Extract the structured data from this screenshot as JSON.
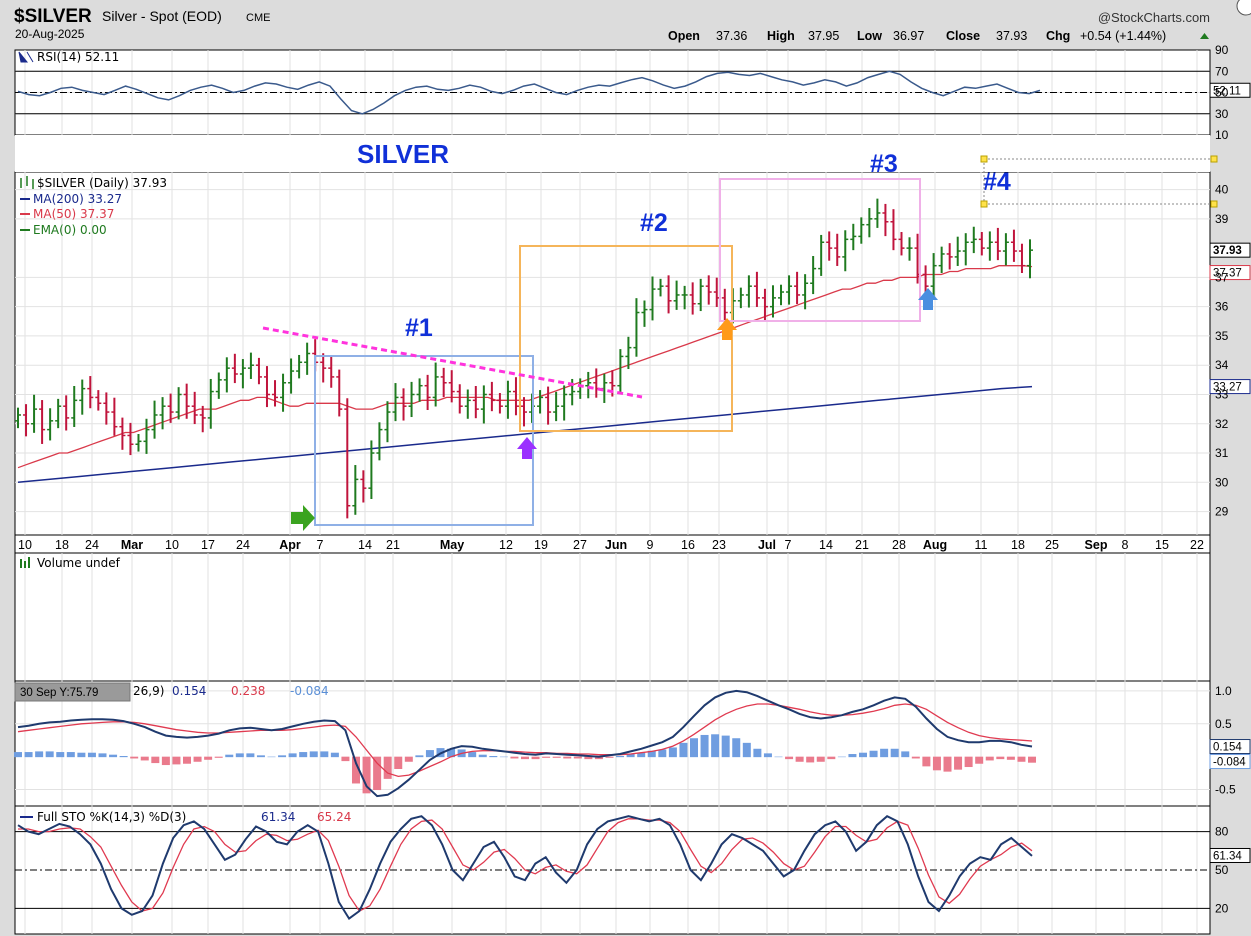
{
  "header": {
    "symbol": "$SILVER",
    "name": "Silver - Spot (EOD)",
    "exchange": "CME",
    "date": "20-Aug-2025",
    "brand": "@StockCharts.com",
    "open_label": "Open",
    "open": "37.36",
    "high_label": "High",
    "high": "37.95",
    "low_label": "Low",
    "low": "36.97",
    "close_label": "Close",
    "close": "37.93",
    "chg_label": "Chg",
    "chg": "+0.54 (+1.44%)"
  },
  "colors": {
    "up": "#1f7a1f",
    "down": "#c0143c",
    "ma200": "#1a2a8c",
    "ma50": "#d9394a",
    "grid": "#e2e2e2"
  },
  "chart_data": [
    {
      "panel": "rsi",
      "type": "line",
      "legend": "RSI(14) 52.11",
      "label_tag": "52.11",
      "ticks": [
        "90",
        "70",
        "50",
        "30",
        "10"
      ],
      "levels": [
        70,
        50,
        30
      ],
      "ylim": [
        10,
        90
      ],
      "values": [
        51,
        48,
        47,
        50,
        54,
        55,
        52,
        50,
        48,
        52,
        56,
        53,
        49,
        45,
        43,
        47,
        52,
        55,
        57,
        54,
        50,
        52,
        56,
        59,
        58,
        55,
        53,
        57,
        60,
        56,
        44,
        33,
        30,
        34,
        40,
        47,
        52,
        55,
        56,
        53,
        52,
        54,
        57,
        55,
        51,
        49,
        52,
        56,
        58,
        54,
        50,
        48,
        52,
        55,
        57,
        56,
        59,
        62,
        64,
        61,
        57,
        54,
        56,
        60,
        65,
        68,
        69,
        67,
        66,
        68,
        65,
        62,
        60,
        57,
        59,
        62,
        60,
        56,
        59,
        64,
        67,
        70,
        67,
        60,
        54,
        50,
        47,
        51,
        55,
        54,
        56,
        58,
        54,
        50,
        49,
        52
      ]
    },
    {
      "panel": "price",
      "type": "ohlc",
      "legend": [
        "$SILVER (Daily) 37.93",
        "MA(200) 33.27",
        "MA(50) 37.37",
        "EMA(0) 0.00"
      ],
      "title": "SILVER",
      "annotations": [
        "#1",
        "#2",
        "#3",
        "#4"
      ],
      "ticks": [
        "29",
        "30",
        "31",
        "32",
        "33",
        "34",
        "35",
        "36",
        "37",
        "39",
        "40"
      ],
      "ylim": [
        28.2,
        40.6
      ],
      "close_tag": "37.93",
      "ma50_tag": "37.37",
      "ma200_tag": "33.27",
      "x_labels": [
        "10",
        "18",
        "24",
        "Mar",
        "10",
        "17",
        "24",
        "Apr",
        "7",
        "14",
        "21",
        "May",
        "12",
        "19",
        "27",
        "Jun",
        "9",
        "16",
        "23",
        "Jul",
        "7",
        "14",
        "21",
        "28",
        "Aug",
        "11",
        "18",
        "25",
        "Sep",
        "8",
        "15",
        "22"
      ],
      "closes": [
        32.3,
        32.0,
        32.5,
        31.8,
        32.1,
        32.6,
        32.2,
        32.8,
        33.2,
        32.9,
        32.7,
        32.4,
        31.9,
        31.6,
        31.3,
        31.4,
        31.8,
        32.3,
        32.6,
        32.4,
        33.0,
        32.6,
        32.3,
        32.2,
        33.1,
        33.5,
        33.9,
        33.7,
        33.9,
        34.0,
        33.6,
        33.0,
        32.9,
        33.4,
        33.8,
        34.1,
        34.4,
        34.1,
        33.9,
        33.6,
        32.5,
        29.2,
        30.1,
        29.8,
        31.0,
        31.8,
        32.4,
        32.9,
        32.6,
        33.0,
        33.3,
        32.9,
        33.6,
        33.4,
        33.1,
        32.6,
        32.8,
        32.5,
        33.0,
        32.8,
        32.6,
        33.1,
        32.6,
        32.4,
        32.6,
        32.9,
        32.4,
        32.6,
        33.0,
        33.1,
        33.3,
        33.4,
        33.2,
        33.4,
        33.3,
        34.3,
        34.6,
        35.8,
        35.9,
        36.6,
        36.7,
        36.2,
        36.4,
        36.4,
        36.1,
        36.7,
        36.5,
        36.3,
        35.8,
        36.2,
        36.4,
        36.7,
        36.3,
        36.0,
        36.3,
        36.5,
        36.7,
        36.4,
        36.8,
        37.3,
        38.2,
        38.0,
        37.7,
        38.3,
        38.4,
        38.8,
        39.0,
        39.2,
        38.9,
        38.3,
        38.0,
        38.0,
        37.1,
        36.7,
        37.4,
        37.8,
        37.7,
        37.9,
        38.2,
        38.3,
        38.0,
        38.2,
        37.9,
        38.2,
        37.9,
        37.4,
        37.93
      ],
      "ma50": [
        30.5,
        30.6,
        30.7,
        30.8,
        30.9,
        31.0,
        31.0,
        31.1,
        31.2,
        31.3,
        31.4,
        31.5,
        31.6,
        31.7,
        31.7,
        31.8,
        31.9,
        32.0,
        32.1,
        32.2,
        32.3,
        32.4,
        32.5,
        32.5,
        32.5,
        32.6,
        32.7,
        32.8,
        32.8,
        32.9,
        32.9,
        32.8,
        32.7,
        32.6,
        32.6,
        32.7,
        32.7,
        32.7,
        32.7,
        32.7,
        32.6,
        32.5,
        32.5,
        32.5,
        32.6,
        32.7,
        32.7,
        32.7,
        32.7,
        32.8,
        32.8,
        32.8,
        32.9,
        32.9,
        32.9,
        32.9,
        32.9,
        32.9,
        32.8,
        32.8,
        32.8,
        32.8,
        32.8,
        32.9,
        33.0,
        33.1,
        33.2,
        33.3,
        33.4,
        33.5,
        33.6,
        33.7,
        33.8,
        33.9,
        34.0,
        34.1,
        34.2,
        34.3,
        34.4,
        34.5,
        34.6,
        34.7,
        34.8,
        34.9,
        35.0,
        35.1,
        35.2,
        35.3,
        35.4,
        35.5,
        35.6,
        35.7,
        35.8,
        35.9,
        36.0,
        36.1,
        36.2,
        36.3,
        36.4,
        36.5,
        36.6,
        36.6,
        36.7,
        36.8,
        36.8,
        36.9,
        36.9,
        37.0,
        37.0,
        37.0,
        37.1,
        37.1,
        37.1,
        37.2,
        37.2,
        37.3,
        37.3,
        37.3,
        37.3,
        37.4,
        37.4,
        37.4,
        37.4,
        37.37
      ],
      "ma200": [
        30.0,
        30.1,
        30.2,
        30.3,
        30.4,
        30.5,
        30.6,
        30.7,
        30.8,
        30.9,
        31.0,
        31.1,
        31.2,
        31.3,
        31.4,
        31.5,
        31.6,
        31.7,
        31.8,
        31.9,
        32.0,
        32.1,
        32.2,
        32.3,
        32.4,
        32.5,
        32.6,
        32.7,
        32.8,
        32.9,
        33.0,
        33.1,
        33.2,
        33.27
      ]
    },
    {
      "panel": "volume",
      "type": "bar",
      "legend": "Volume undef"
    },
    {
      "panel": "macd",
      "type": "line",
      "tooltip": "30 Sep Y:75.79",
      "legend_fragment": "26,9)",
      "values": [
        "0.154",
        "0.238",
        "-0.084"
      ],
      "ticks": [
        "1.0",
        "0.5",
        "-0.5"
      ],
      "ylim": [
        -0.75,
        1.15
      ],
      "macd_tag": "0.154",
      "hist_tag": "-0.084",
      "macd": [
        0.45,
        0.47,
        0.5,
        0.52,
        0.53,
        0.55,
        0.56,
        0.57,
        0.57,
        0.56,
        0.54,
        0.5,
        0.45,
        0.38,
        0.32,
        0.3,
        0.29,
        0.3,
        0.32,
        0.35,
        0.4,
        0.43,
        0.44,
        0.42,
        0.4,
        0.42,
        0.46,
        0.5,
        0.53,
        0.55,
        0.54,
        0.4,
        -0.1,
        -0.45,
        -0.6,
        -0.58,
        -0.48,
        -0.35,
        -0.2,
        -0.05,
        0.05,
        0.12,
        0.16,
        0.15,
        0.12,
        0.1,
        0.08,
        0.06,
        0.04,
        0.03,
        0.05,
        0.04,
        0.03,
        0.02,
        0.01,
        0.0,
        0.02,
        0.04,
        0.08,
        0.12,
        0.17,
        0.22,
        0.3,
        0.45,
        0.62,
        0.78,
        0.9,
        0.97,
        1.0,
        0.98,
        0.92,
        0.85,
        0.78,
        0.72,
        0.65,
        0.6,
        0.58,
        0.6,
        0.63,
        0.68,
        0.72,
        0.78,
        0.85,
        0.9,
        0.88,
        0.76,
        0.58,
        0.42,
        0.3,
        0.25,
        0.22,
        0.22,
        0.24,
        0.24,
        0.22,
        0.18,
        0.154
      ],
      "signal": [
        0.38,
        0.4,
        0.42,
        0.44,
        0.46,
        0.48,
        0.5,
        0.51,
        0.52,
        0.53,
        0.53,
        0.52,
        0.5,
        0.47,
        0.44,
        0.41,
        0.39,
        0.37,
        0.36,
        0.36,
        0.37,
        0.38,
        0.39,
        0.4,
        0.4,
        0.4,
        0.41,
        0.43,
        0.45,
        0.47,
        0.48,
        0.46,
        0.3,
        0.1,
        -0.1,
        -0.25,
        -0.3,
        -0.28,
        -0.22,
        -0.15,
        -0.08,
        0.0,
        0.05,
        0.08,
        0.09,
        0.09,
        0.08,
        0.08,
        0.07,
        0.06,
        0.06,
        0.05,
        0.05,
        0.04,
        0.04,
        0.03,
        0.03,
        0.03,
        0.04,
        0.06,
        0.08,
        0.11,
        0.16,
        0.24,
        0.34,
        0.45,
        0.56,
        0.65,
        0.72,
        0.77,
        0.8,
        0.8,
        0.78,
        0.75,
        0.72,
        0.68,
        0.65,
        0.63,
        0.63,
        0.64,
        0.66,
        0.69,
        0.73,
        0.78,
        0.8,
        0.78,
        0.72,
        0.62,
        0.52,
        0.44,
        0.37,
        0.32,
        0.29,
        0.27,
        0.26,
        0.25,
        0.238
      ],
      "hist": [
        0.07,
        0.07,
        0.08,
        0.08,
        0.07,
        0.07,
        0.06,
        0.06,
        0.05,
        0.03,
        0.01,
        -0.02,
        -0.05,
        -0.09,
        -0.12,
        -0.11,
        -0.1,
        -0.07,
        -0.04,
        -0.01,
        0.03,
        0.05,
        0.05,
        0.02,
        0.0,
        0.02,
        0.05,
        0.07,
        0.08,
        0.08,
        0.06,
        -0.06,
        -0.4,
        -0.55,
        -0.5,
        -0.33,
        -0.18,
        -0.07,
        0.02,
        0.1,
        0.13,
        0.12,
        0.11,
        0.07,
        0.03,
        0.01,
        0.0,
        -0.02,
        -0.03,
        -0.03,
        -0.01,
        -0.01,
        -0.02,
        -0.02,
        -0.03,
        -0.03,
        -0.01,
        0.01,
        0.04,
        0.06,
        0.09,
        0.11,
        0.14,
        0.21,
        0.28,
        0.33,
        0.34,
        0.32,
        0.28,
        0.21,
        0.12,
        0.05,
        0.0,
        -0.03,
        -0.07,
        -0.08,
        -0.07,
        -0.03,
        0.0,
        0.04,
        0.06,
        0.09,
        0.12,
        0.12,
        0.08,
        -0.02,
        -0.14,
        -0.2,
        -0.22,
        -0.19,
        -0.15,
        -0.1,
        -0.05,
        -0.03,
        -0.04,
        -0.07,
        -0.084
      ]
    },
    {
      "panel": "stochastic",
      "type": "line",
      "legend": "Full STO %K(14,3) %D(3)",
      "k_value": "61.34",
      "d_value": "65.24",
      "ticks": [
        "80",
        "50",
        "20"
      ],
      "levels": [
        80,
        50,
        20
      ],
      "ylim": [
        0,
        100
      ],
      "k_tag": "61.34",
      "k": [
        85,
        80,
        78,
        82,
        86,
        84,
        78,
        70,
        55,
        35,
        20,
        15,
        18,
        30,
        55,
        75,
        85,
        88,
        82,
        70,
        58,
        62,
        74,
        84,
        80,
        72,
        70,
        80,
        85,
        80,
        55,
        25,
        12,
        18,
        35,
        55,
        72,
        82,
        90,
        92,
        85,
        70,
        50,
        42,
        55,
        68,
        72,
        60,
        45,
        42,
        55,
        60,
        48,
        40,
        50,
        70,
        82,
        88,
        90,
        92,
        90,
        88,
        90,
        85,
        70,
        50,
        42,
        55,
        70,
        78,
        75,
        70,
        65,
        55,
        45,
        50,
        65,
        78,
        85,
        88,
        80,
        65,
        72,
        85,
        92,
        88,
        70,
        45,
        25,
        18,
        30,
        45,
        55,
        60,
        58,
        70,
        75,
        68,
        61
      ],
      "d": [
        82,
        82,
        80,
        80,
        82,
        83,
        82,
        76,
        68,
        53,
        38,
        25,
        18,
        20,
        32,
        52,
        70,
        82,
        84,
        80,
        70,
        64,
        65,
        73,
        78,
        77,
        73,
        74,
        78,
        81,
        73,
        53,
        30,
        18,
        22,
        35,
        53,
        70,
        82,
        88,
        89,
        82,
        68,
        54,
        50,
        56,
        64,
        66,
        59,
        50,
        47,
        52,
        54,
        49,
        47,
        54,
        67,
        80,
        87,
        90,
        90,
        89,
        89,
        87,
        80,
        66,
        53,
        48,
        55,
        66,
        74,
        75,
        71,
        64,
        55,
        50,
        53,
        64,
        76,
        84,
        84,
        77,
        72,
        74,
        83,
        88,
        85,
        67,
        46,
        29,
        24,
        31,
        43,
        53,
        58,
        62,
        68,
        71,
        65
      ]
    }
  ]
}
